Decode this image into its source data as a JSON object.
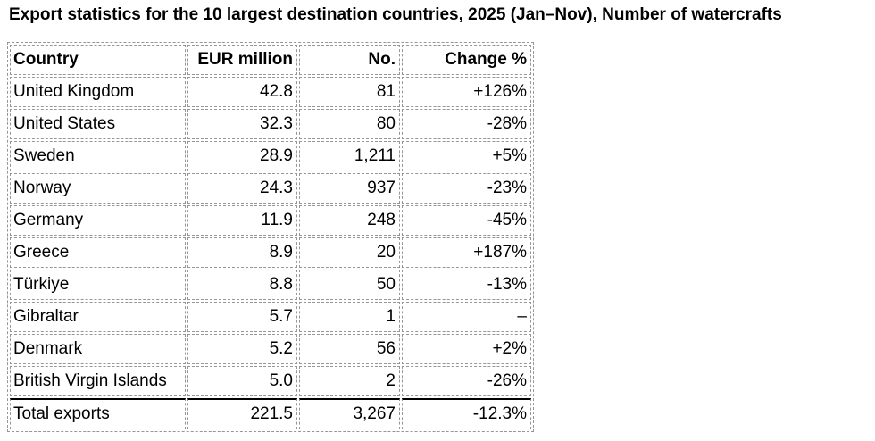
{
  "title": "Export statistics for the 10 largest destination countries, 2025 (Jan–Nov), Number of watercrafts",
  "table": {
    "columns": [
      {
        "key": "country",
        "label": "Country",
        "align": "left"
      },
      {
        "key": "eur_million",
        "label": "EUR million",
        "align": "right"
      },
      {
        "key": "number",
        "label": "No.",
        "align": "right"
      },
      {
        "key": "change",
        "label": "Change %",
        "align": "right"
      }
    ],
    "rows": [
      {
        "country": "United Kingdom",
        "eur_million": "42.8",
        "number": "81",
        "change": "+126%"
      },
      {
        "country": "United States",
        "eur_million": "32.3",
        "number": "80",
        "change": "-28%"
      },
      {
        "country": "Sweden",
        "eur_million": "28.9",
        "number": "1,211",
        "change": "+5%"
      },
      {
        "country": "Norway",
        "eur_million": "24.3",
        "number": "937",
        "change": "-23%"
      },
      {
        "country": "Germany",
        "eur_million": "11.9",
        "number": "248",
        "change": "-45%"
      },
      {
        "country": "Greece",
        "eur_million": "8.9",
        "number": "20",
        "change": "+187%"
      },
      {
        "country": "Türkiye",
        "eur_million": "8.8",
        "number": "50",
        "change": "-13%"
      },
      {
        "country": "Gibraltar",
        "eur_million": "5.7",
        "number": "1",
        "change": "–"
      },
      {
        "country": "Denmark",
        "eur_million": "5.2",
        "number": "56",
        "change": "+2%"
      },
      {
        "country": "British Virgin Islands",
        "eur_million": "5.0",
        "number": "2",
        "change": "-26%"
      }
    ],
    "total_row": {
      "country": "Total exports",
      "eur_million": "221.5",
      "number": "3,267",
      "change": "-12.3%"
    }
  },
  "colors": {
    "background": "#ffffff",
    "text": "#000000",
    "cell_border": "#969696",
    "total_rule": "#000000"
  }
}
